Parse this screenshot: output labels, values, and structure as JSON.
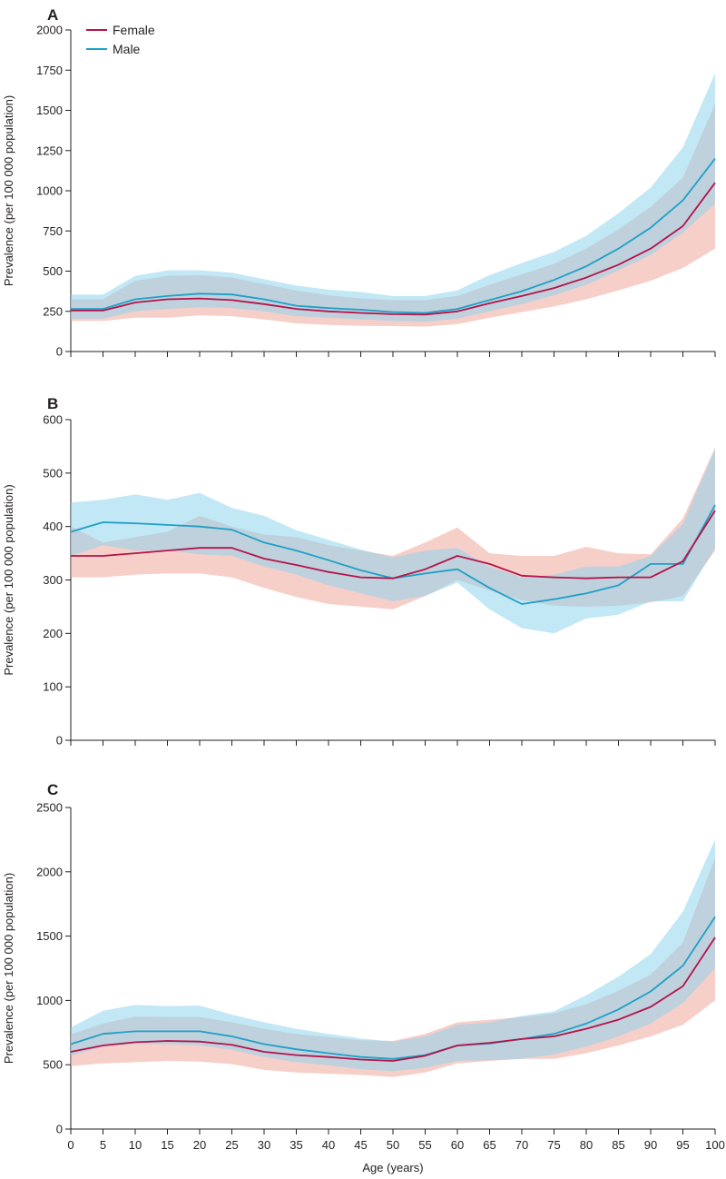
{
  "legend": [
    {
      "name": "Female",
      "color": "#b5134a"
    },
    {
      "name": "Male",
      "color": "#1fa0c6"
    }
  ],
  "band_colors": {
    "Female": "#f0a79c",
    "Male": "#8fd3ec"
  },
  "x_axis_label": "Age (years)",
  "chart_data": [
    {
      "panel": "A",
      "type": "line",
      "x": [
        0,
        5,
        10,
        15,
        20,
        25,
        30,
        35,
        40,
        45,
        50,
        55,
        60,
        65,
        70,
        75,
        80,
        85,
        90,
        95,
        100
      ],
      "xlim": [
        0,
        100
      ],
      "xticks": [
        0,
        5,
        10,
        15,
        20,
        25,
        30,
        35,
        40,
        45,
        50,
        55,
        60,
        65,
        70,
        75,
        80,
        85,
        90,
        95,
        100
      ],
      "ylabel": "Prevalence (per 100 000 population)",
      "ylim": [
        0,
        2000
      ],
      "yticks": [
        0,
        250,
        500,
        750,
        1000,
        1250,
        1500,
        1750,
        2000
      ],
      "series": [
        {
          "name": "Female",
          "values": [
            255,
            255,
            305,
            325,
            330,
            320,
            295,
            265,
            250,
            240,
            232,
            230,
            250,
            300,
            345,
            395,
            460,
            540,
            640,
            780,
            1050
          ],
          "lower": [
            190,
            190,
            210,
            210,
            225,
            220,
            200,
            175,
            165,
            160,
            158,
            155,
            170,
            210,
            245,
            280,
            325,
            380,
            440,
            520,
            640
          ],
          "upper": [
            325,
            325,
            440,
            470,
            475,
            460,
            420,
            380,
            350,
            330,
            320,
            320,
            345,
            415,
            480,
            545,
            640,
            760,
            900,
            1080,
            1540
          ]
        },
        {
          "name": "Male",
          "values": [
            265,
            265,
            325,
            345,
            360,
            355,
            325,
            285,
            270,
            260,
            245,
            240,
            265,
            320,
            375,
            445,
            530,
            640,
            770,
            940,
            1200
          ],
          "lower": [
            205,
            205,
            250,
            265,
            275,
            270,
            250,
            220,
            210,
            200,
            190,
            185,
            205,
            250,
            295,
            350,
            415,
            505,
            600,
            740,
            920
          ],
          "upper": [
            355,
            355,
            470,
            505,
            505,
            490,
            450,
            410,
            385,
            370,
            345,
            345,
            380,
            475,
            550,
            620,
            720,
            860,
            1020,
            1270,
            1730
          ]
        }
      ]
    },
    {
      "panel": "B",
      "type": "line",
      "x": [
        0,
        5,
        10,
        15,
        20,
        25,
        30,
        35,
        40,
        45,
        50,
        55,
        60,
        65,
        70,
        75,
        80,
        85,
        90,
        95,
        100
      ],
      "xlim": [
        0,
        100
      ],
      "xticks": [
        0,
        5,
        10,
        15,
        20,
        25,
        30,
        35,
        40,
        45,
        50,
        55,
        60,
        65,
        70,
        75,
        80,
        85,
        90,
        95,
        100
      ],
      "ylabel": "Prevalence (per 100 000 population)",
      "ylim": [
        0,
        600
      ],
      "yticks": [
        0,
        100,
        200,
        300,
        400,
        500,
        600
      ],
      "series": [
        {
          "name": "Female",
          "values": [
            345,
            345,
            350,
            355,
            360,
            360,
            340,
            328,
            315,
            305,
            303,
            320,
            345,
            330,
            308,
            305,
            303,
            305,
            305,
            335,
            430
          ],
          "lower": [
            305,
            305,
            310,
            312,
            312,
            305,
            285,
            268,
            255,
            250,
            245,
            270,
            300,
            280,
            262,
            252,
            250,
            252,
            258,
            270,
            355
          ],
          "upper": [
            400,
            370,
            380,
            390,
            420,
            400,
            385,
            380,
            365,
            355,
            345,
            370,
            398,
            350,
            345,
            345,
            362,
            350,
            348,
            415,
            548
          ]
        },
        {
          "name": "Male",
          "values": [
            390,
            408,
            406,
            403,
            400,
            394,
            370,
            355,
            337,
            318,
            303,
            312,
            320,
            285,
            255,
            264,
            275,
            290,
            330,
            330,
            440
          ],
          "lower": [
            345,
            365,
            355,
            355,
            348,
            345,
            325,
            310,
            290,
            275,
            260,
            270,
            295,
            245,
            210,
            200,
            228,
            235,
            260,
            260,
            360
          ],
          "upper": [
            445,
            450,
            460,
            450,
            463,
            435,
            420,
            393,
            375,
            357,
            342,
            355,
            360,
            325,
            305,
            310,
            325,
            325,
            345,
            405,
            545
          ]
        }
      ]
    },
    {
      "panel": "C",
      "type": "line",
      "x": [
        0,
        5,
        10,
        15,
        20,
        25,
        30,
        35,
        40,
        45,
        50,
        55,
        60,
        65,
        70,
        75,
        80,
        85,
        90,
        95,
        100
      ],
      "xlim": [
        0,
        100
      ],
      "xticks": [
        0,
        5,
        10,
        15,
        20,
        25,
        30,
        35,
        40,
        45,
        50,
        55,
        60,
        65,
        70,
        75,
        80,
        85,
        90,
        95,
        100
      ],
      "xlabel": "Age (years)",
      "ylabel": "Prevalence (per 100 000 population)",
      "ylim": [
        0,
        2500
      ],
      "yticks": [
        0,
        500,
        1000,
        1500,
        2000,
        2500
      ],
      "series": [
        {
          "name": "Female",
          "values": [
            600,
            650,
            675,
            685,
            680,
            655,
            600,
            575,
            560,
            540,
            530,
            570,
            650,
            670,
            700,
            720,
            780,
            850,
            950,
            1110,
            1490
          ],
          "lower": [
            490,
            510,
            520,
            530,
            525,
            505,
            460,
            440,
            430,
            420,
            405,
            440,
            510,
            530,
            545,
            545,
            590,
            650,
            720,
            810,
            1000
          ],
          "upper": [
            735,
            820,
            875,
            870,
            870,
            830,
            780,
            740,
            715,
            690,
            685,
            740,
            830,
            850,
            870,
            900,
            970,
            1075,
            1200,
            1450,
            2110
          ]
        },
        {
          "name": "Male",
          "values": [
            660,
            740,
            760,
            760,
            760,
            720,
            660,
            620,
            590,
            560,
            545,
            575,
            650,
            665,
            700,
            740,
            820,
            930,
            1070,
            1270,
            1650
          ],
          "lower": [
            570,
            640,
            660,
            660,
            650,
            615,
            560,
            520,
            495,
            465,
            450,
            475,
            530,
            535,
            545,
            580,
            640,
            720,
            820,
            980,
            1250
          ],
          "upper": [
            790,
            920,
            965,
            955,
            960,
            890,
            830,
            780,
            740,
            705,
            680,
            720,
            810,
            830,
            880,
            915,
            1040,
            1185,
            1360,
            1690,
            2250
          ]
        }
      ]
    }
  ]
}
